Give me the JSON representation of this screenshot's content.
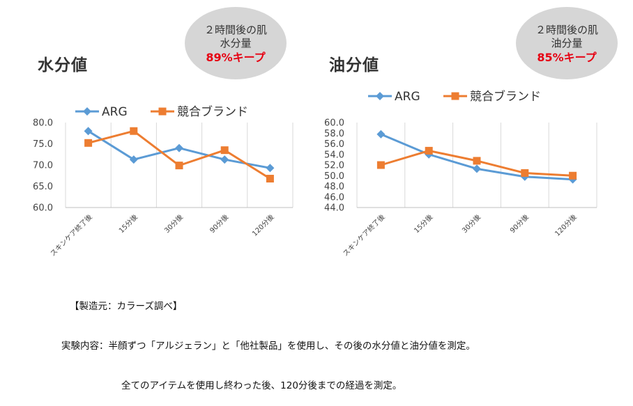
{
  "panels": [
    {
      "title": "水分値",
      "badge": {
        "line1": "２時間後の肌",
        "line2": "水分量",
        "highlight": "89%キープ"
      }
    },
    {
      "title": "油分値",
      "badge": {
        "line1": "２時間後の肌",
        "line2": "油分量",
        "highlight": "85%キープ"
      }
    }
  ],
  "notes": {
    "line1": "【製造元：カラーズ調べ】",
    "line2": "実験内容：半顔ずつ「アルジェラン」と「他社製品」を使用し、その後の水分値と油分値を測定。",
    "line3": "全てのアイテムを使用し終わった後、120分後までの経過を測定。"
  },
  "chart_data": [
    {
      "type": "line",
      "title": "水分値",
      "categories": [
        "スキンケア終了後",
        "15分後",
        "30分後",
        "90分後",
        "120分後"
      ],
      "series": [
        {
          "name": "ARG",
          "values": [
            78.0,
            71.3,
            74.0,
            71.3,
            69.3
          ],
          "color": "#5b9bd5",
          "marker": "diamond"
        },
        {
          "name": "競合ブランド",
          "values": [
            75.2,
            78.0,
            69.9,
            73.5,
            66.8
          ],
          "color": "#ed7d31",
          "marker": "square"
        }
      ],
      "ylim": [
        60,
        80
      ],
      "yticks": [
        "60.0",
        "65.0",
        "70.0",
        "75.0",
        "80.0"
      ],
      "grid": "vertical",
      "legend": "top"
    },
    {
      "type": "line",
      "title": "油分値",
      "categories": [
        "スキンケア終了後",
        "15分後",
        "30分後",
        "90分後",
        "120分後"
      ],
      "series": [
        {
          "name": "ARG",
          "values": [
            57.8,
            54.0,
            51.3,
            49.8,
            49.3
          ],
          "color": "#5b9bd5",
          "marker": "diamond"
        },
        {
          "name": "競合ブランド",
          "values": [
            52.0,
            54.7,
            52.8,
            50.5,
            50.0
          ],
          "color": "#ed7d31",
          "marker": "square"
        }
      ],
      "ylim": [
        44,
        60
      ],
      "yticks": [
        "44.0",
        "46.0",
        "48.0",
        "50.0",
        "52.0",
        "54.0",
        "56.0",
        "58.0",
        "60.0"
      ],
      "grid": "vertical",
      "legend": "top"
    }
  ]
}
